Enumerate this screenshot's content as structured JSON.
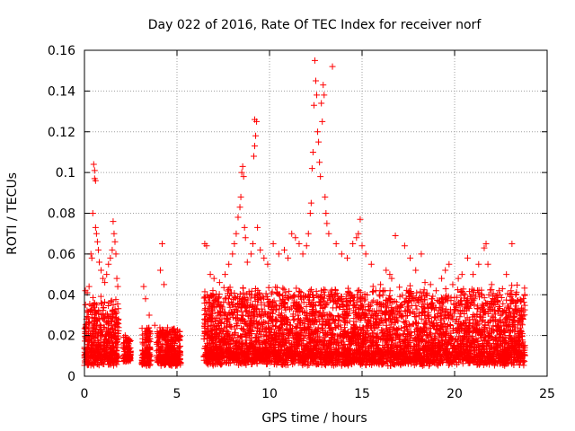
{
  "chart_data": {
    "type": "scatter",
    "title": "Day 022 of 2016, Rate Of TEC Index for receiver norf",
    "xlabel": "GPS time / hours",
    "ylabel": "ROTI / TECUs",
    "xlim": [
      0,
      25
    ],
    "ylim": [
      0,
      0.16
    ],
    "x_ticks": [
      0,
      5,
      10,
      15,
      20,
      25
    ],
    "y_ticks": [
      0,
      0.02,
      0.04,
      0.06,
      0.08,
      0.1,
      0.12,
      0.14,
      0.16
    ],
    "x_tick_labels": [
      "0",
      "5",
      "10",
      "15",
      "20",
      "25"
    ],
    "y_tick_labels": [
      "0",
      "0.02",
      "0.04",
      "0.06",
      "0.08",
      "0.1",
      "0.12",
      "0.14",
      "0.16"
    ],
    "grid": true,
    "marker": "+",
    "color": "#ff0000",
    "series": [
      {
        "points": [
          [
            0.05,
            0.042
          ],
          [
            0.15,
            0.041
          ],
          [
            0.25,
            0.044
          ],
          [
            0.35,
            0.06
          ],
          [
            0.4,
            0.058
          ],
          [
            0.45,
            0.08
          ],
          [
            0.5,
            0.104
          ],
          [
            0.55,
            0.101
          ],
          [
            0.55,
            0.097
          ],
          [
            0.6,
            0.096
          ],
          [
            0.6,
            0.073
          ],
          [
            0.65,
            0.07
          ],
          [
            0.7,
            0.066
          ],
          [
            0.75,
            0.062
          ],
          [
            0.8,
            0.056
          ],
          [
            0.9,
            0.052
          ],
          [
            1.0,
            0.048
          ],
          [
            1.1,
            0.046
          ],
          [
            1.2,
            0.05
          ],
          [
            1.3,
            0.055
          ],
          [
            1.4,
            0.058
          ],
          [
            1.5,
            0.062
          ],
          [
            1.55,
            0.076
          ],
          [
            1.6,
            0.07
          ],
          [
            1.65,
            0.066
          ],
          [
            1.7,
            0.06
          ],
          [
            1.75,
            0.048
          ],
          [
            1.8,
            0.044
          ],
          [
            2.2,
            0.02
          ],
          [
            2.3,
            0.018
          ],
          [
            2.4,
            0.014
          ],
          [
            3.2,
            0.044
          ],
          [
            3.3,
            0.038
          ],
          [
            3.5,
            0.03
          ],
          [
            3.8,
            0.025
          ],
          [
            4.1,
            0.052
          ],
          [
            4.2,
            0.065
          ],
          [
            4.3,
            0.045
          ],
          [
            4.5,
            0.02
          ],
          [
            4.7,
            0.018
          ],
          [
            5.0,
            0.018
          ],
          [
            5.1,
            0.014
          ],
          [
            6.5,
            0.065
          ],
          [
            6.6,
            0.064
          ],
          [
            6.8,
            0.05
          ],
          [
            7.0,
            0.048
          ],
          [
            7.3,
            0.046
          ],
          [
            7.6,
            0.05
          ],
          [
            7.8,
            0.055
          ],
          [
            8.0,
            0.06
          ],
          [
            8.1,
            0.065
          ],
          [
            8.2,
            0.07
          ],
          [
            8.3,
            0.078
          ],
          [
            8.4,
            0.083
          ],
          [
            8.45,
            0.088
          ],
          [
            8.5,
            0.1
          ],
          [
            8.55,
            0.103
          ],
          [
            8.6,
            0.098
          ],
          [
            8.65,
            0.073
          ],
          [
            8.7,
            0.068
          ],
          [
            8.8,
            0.056
          ],
          [
            9.0,
            0.06
          ],
          [
            9.1,
            0.065
          ],
          [
            9.15,
            0.108
          ],
          [
            9.2,
            0.113
          ],
          [
            9.25,
            0.118
          ],
          [
            9.2,
            0.126
          ],
          [
            9.3,
            0.125
          ],
          [
            9.35,
            0.073
          ],
          [
            9.5,
            0.062
          ],
          [
            9.7,
            0.058
          ],
          [
            9.9,
            0.055
          ],
          [
            10.2,
            0.065
          ],
          [
            10.5,
            0.06
          ],
          [
            10.8,
            0.062
          ],
          [
            11.0,
            0.058
          ],
          [
            11.2,
            0.07
          ],
          [
            11.4,
            0.068
          ],
          [
            11.6,
            0.065
          ],
          [
            11.8,
            0.06
          ],
          [
            12.0,
            0.064
          ],
          [
            12.1,
            0.07
          ],
          [
            12.2,
            0.08
          ],
          [
            12.25,
            0.085
          ],
          [
            12.3,
            0.102
          ],
          [
            12.35,
            0.11
          ],
          [
            12.4,
            0.133
          ],
          [
            12.45,
            0.155
          ],
          [
            12.5,
            0.145
          ],
          [
            12.55,
            0.138
          ],
          [
            12.6,
            0.12
          ],
          [
            12.65,
            0.115
          ],
          [
            12.7,
            0.105
          ],
          [
            12.75,
            0.098
          ],
          [
            12.8,
            0.134
          ],
          [
            12.85,
            0.125
          ],
          [
            12.9,
            0.143
          ],
          [
            12.95,
            0.138
          ],
          [
            13.0,
            0.088
          ],
          [
            13.05,
            0.08
          ],
          [
            13.1,
            0.075
          ],
          [
            13.2,
            0.07
          ],
          [
            13.4,
            0.152
          ],
          [
            13.6,
            0.065
          ],
          [
            13.9,
            0.06
          ],
          [
            14.2,
            0.058
          ],
          [
            14.5,
            0.065
          ],
          [
            14.7,
            0.068
          ],
          [
            14.8,
            0.07
          ],
          [
            14.9,
            0.077
          ],
          [
            15.0,
            0.064
          ],
          [
            15.2,
            0.06
          ],
          [
            15.5,
            0.055
          ],
          [
            16.0,
            0.045
          ],
          [
            16.3,
            0.052
          ],
          [
            16.5,
            0.05
          ],
          [
            16.6,
            0.048
          ],
          [
            16.8,
            0.069
          ],
          [
            17.3,
            0.064
          ],
          [
            17.6,
            0.058
          ],
          [
            17.9,
            0.052
          ],
          [
            18.2,
            0.06
          ],
          [
            18.4,
            0.046
          ],
          [
            18.7,
            0.045
          ],
          [
            19.0,
            0.042
          ],
          [
            19.3,
            0.048
          ],
          [
            19.5,
            0.052
          ],
          [
            19.7,
            0.055
          ],
          [
            19.9,
            0.045
          ],
          [
            20.2,
            0.048
          ],
          [
            20.4,
            0.05
          ],
          [
            20.7,
            0.058
          ],
          [
            21.0,
            0.05
          ],
          [
            21.3,
            0.055
          ],
          [
            21.6,
            0.063
          ],
          [
            21.7,
            0.065
          ],
          [
            21.8,
            0.055
          ],
          [
            22.0,
            0.045
          ],
          [
            22.4,
            0.042
          ],
          [
            22.8,
            0.05
          ],
          [
            23.1,
            0.065
          ],
          [
            23.3,
            0.04
          ],
          [
            23.5,
            0.032
          ],
          [
            23.7,
            0.028
          ]
        ]
      }
    ],
    "dense_bands": [
      {
        "x": [
          0.0,
          1.85
        ],
        "y": [
          0.005,
          0.04
        ]
      },
      {
        "x": [
          2.1,
          2.5
        ],
        "y": [
          0.007,
          0.02
        ]
      },
      {
        "x": [
          3.1,
          3.6
        ],
        "y": [
          0.005,
          0.025
        ]
      },
      {
        "x": [
          3.9,
          5.2
        ],
        "y": [
          0.005,
          0.025
        ]
      },
      {
        "x": [
          6.45,
          23.8
        ],
        "y": [
          0.005,
          0.045
        ]
      }
    ]
  }
}
